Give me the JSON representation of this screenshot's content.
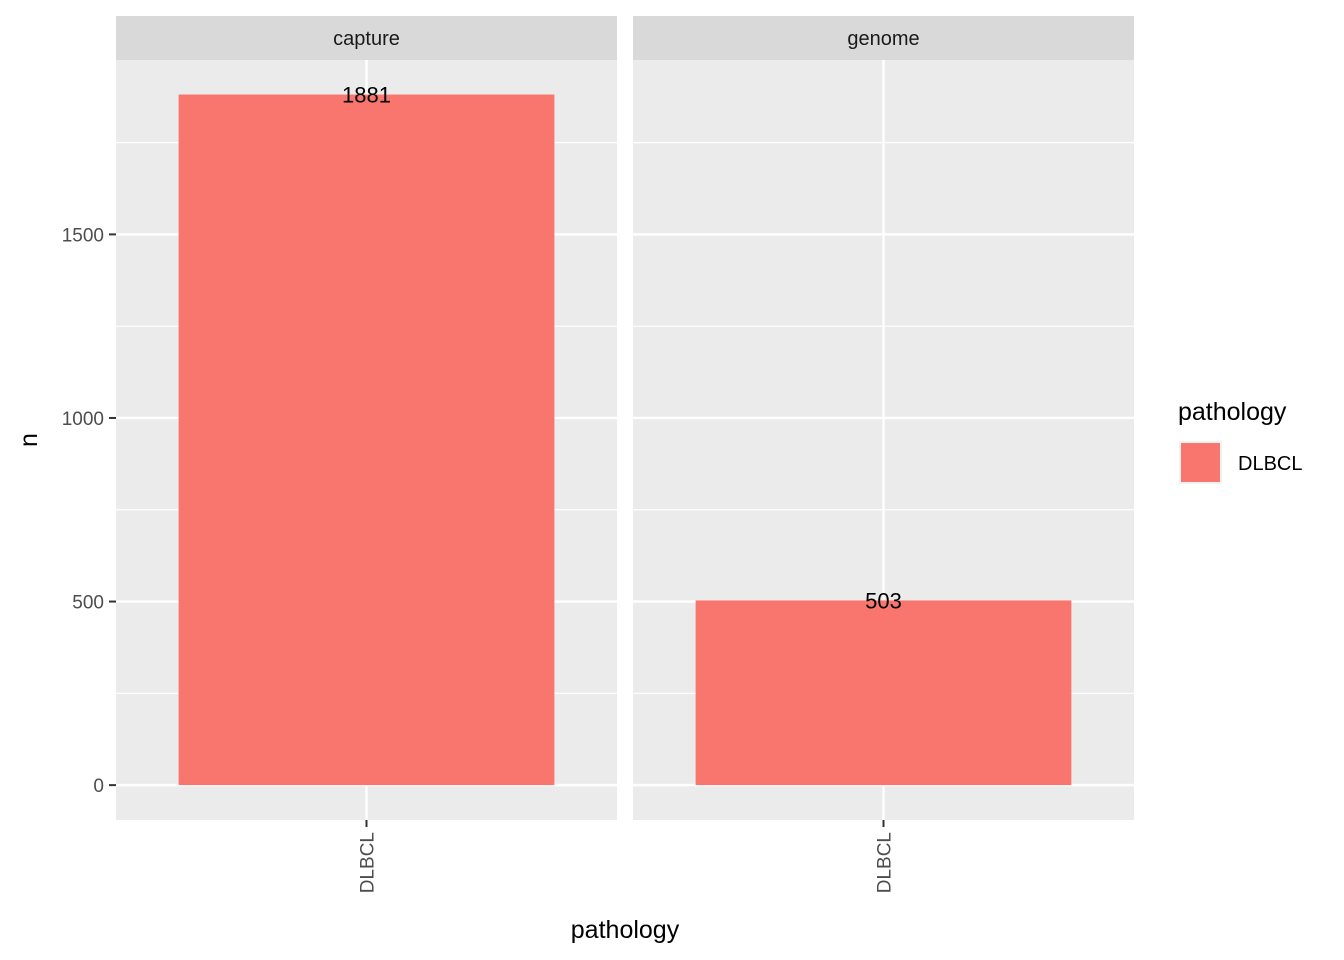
{
  "chart_data": {
    "type": "bar",
    "facet_by": "",
    "panels": [
      {
        "name": "capture",
        "categories": [
          "DLBCL"
        ],
        "values": [
          1881
        ],
        "data_labels": [
          "1881"
        ]
      },
      {
        "name": "genome",
        "categories": [
          "DLBCL"
        ],
        "values": [
          503
        ],
        "data_labels": [
          "503"
        ]
      }
    ],
    "xlabel": "pathology",
    "ylabel": "n",
    "ylim": [
      -95,
      1975
    ],
    "yticks": [
      0,
      500,
      1000,
      1500
    ],
    "ytick_labels": [
      "0",
      "500",
      "1000",
      "1500"
    ],
    "grid": true,
    "legend": {
      "title": "pathology",
      "placement": "right",
      "entries": [
        {
          "label": "DLBCL",
          "color": "#F8766D"
        }
      ]
    },
    "colors": {
      "bar": "#F8766D",
      "panel_background": "#EBEBEB",
      "strip_background": "#D9D9D9",
      "grid": "#FFFFFF"
    }
  }
}
